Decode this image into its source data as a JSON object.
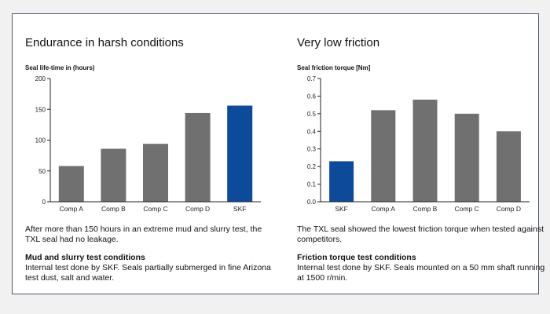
{
  "colors": {
    "bar_gray": "#707070",
    "bar_skf": "#0d4a9a",
    "axis": "#222222",
    "grid": "#dddddd"
  },
  "panels": {
    "left": {
      "title": "Endurance in harsh conditions",
      "chart_label": "Seal life-time in (hours)",
      "description": "After more than 150 hours in an extreme mud and slurry test, the TXL seal had no leakage.",
      "conditions_title": "Mud and slurry test conditions",
      "conditions_text": "Internal test done by SKF. Seals partially submerged in fine Arizona test dust, salt and water."
    },
    "right": {
      "title": "Very low friction",
      "chart_label": "Seal friction torque [Nm]",
      "description": "The TXL seal showed the lowest friction torque when tested against competitors.",
      "conditions_title": "Friction torque test conditions",
      "conditions_text": "Internal test done by SKF. Seals mounted on a 50 mm shaft running at 1500 r/min."
    }
  },
  "chart_data": [
    {
      "type": "bar",
      "title": "",
      "ylabel": "Seal life-time in (hours)",
      "categories": [
        "Comp A",
        "Comp B",
        "Comp C",
        "Comp D",
        "SKF"
      ],
      "values": [
        58,
        86,
        94,
        144,
        156
      ],
      "highlight": [
        "SKF"
      ],
      "ylim": [
        0,
        200
      ],
      "yticks": [
        0,
        50,
        100,
        150,
        200
      ],
      "ytick_labels": [
        "0",
        "50",
        "100",
        "150",
        "200"
      ]
    },
    {
      "type": "bar",
      "title": "",
      "ylabel": "Seal friction torque [Nm]",
      "categories": [
        "SKF",
        "Comp A",
        "Comp B",
        "Comp C",
        "Comp D"
      ],
      "values": [
        0.23,
        0.52,
        0.58,
        0.5,
        0.4
      ],
      "highlight": [
        "SKF"
      ],
      "ylim": [
        0,
        0.7
      ],
      "yticks": [
        0,
        0.1,
        0.2,
        0.3,
        0.4,
        0.5,
        0.6,
        0.7
      ],
      "ytick_labels": [
        "0.0",
        "0.1",
        "0.2",
        "0.3",
        "0.4",
        "0.5",
        "0.6",
        "0.7"
      ]
    }
  ]
}
